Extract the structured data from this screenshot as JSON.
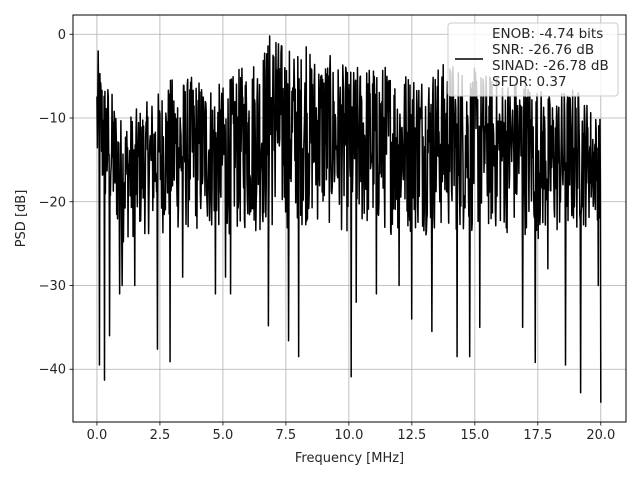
{
  "chart_data": {
    "type": "line",
    "title": "",
    "xlabel": "Frequency [MHz]",
    "ylabel": "PSD [dB]",
    "xlim": [
      -0.95,
      21.0
    ],
    "ylim": [
      -46.3,
      2.3
    ],
    "xticks": [
      0.0,
      2.5,
      5.0,
      7.5,
      10.0,
      12.5,
      15.0,
      17.5,
      20.0
    ],
    "xtick_labels": [
      "0.0",
      "2.5",
      "5.0",
      "7.5",
      "10.0",
      "12.5",
      "15.0",
      "17.5",
      "20.0"
    ],
    "yticks": [
      0,
      -10,
      -20,
      -30,
      -40
    ],
    "ytick_labels": [
      "0",
      "−10",
      "−20",
      "−30",
      "−40"
    ],
    "grid": true,
    "legend": {
      "placement": "top-right",
      "entries": [
        "ENOB: -4.74 bits",
        "SNR: -26.76 dB",
        "SINAD: -26.78 dB",
        "SFDR: 0.37"
      ]
    },
    "series": [
      {
        "color": "#000000",
        "x_range": [
          0.0,
          20.0
        ],
        "num_points": 1200,
        "envelope_upper": [
          [
            0.0,
            -2.0
          ],
          [
            1.0,
            -10.0
          ],
          [
            2.0,
            -8.0
          ],
          [
            3.0,
            -5.0
          ],
          [
            4.0,
            -5.0
          ],
          [
            5.0,
            -6.0
          ],
          [
            6.0,
            -3.0
          ],
          [
            7.0,
            0.0
          ],
          [
            8.0,
            -2.0
          ],
          [
            9.0,
            -2.0
          ],
          [
            10.0,
            -4.0
          ],
          [
            11.0,
            -3.0
          ],
          [
            12.0,
            -4.0
          ],
          [
            13.0,
            -4.0
          ],
          [
            14.0,
            -3.0
          ],
          [
            15.0,
            -4.0
          ],
          [
            16.0,
            -5.0
          ],
          [
            17.0,
            -5.0
          ],
          [
            18.0,
            -7.0
          ],
          [
            19.0,
            -6.0
          ],
          [
            20.0,
            -10.0
          ]
        ],
        "envelope_lower": [
          [
            0.0,
            -20.0
          ],
          [
            1.0,
            -25.0
          ],
          [
            2.0,
            -24.0
          ],
          [
            3.0,
            -24.0
          ],
          [
            4.0,
            -24.0
          ],
          [
            5.0,
            -24.0
          ],
          [
            6.0,
            -24.0
          ],
          [
            7.0,
            -24.0
          ],
          [
            8.0,
            -23.0
          ],
          [
            9.0,
            -23.0
          ],
          [
            10.0,
            -24.0
          ],
          [
            11.0,
            -24.0
          ],
          [
            12.0,
            -24.0
          ],
          [
            13.0,
            -24.0
          ],
          [
            14.0,
            -24.0
          ],
          [
            15.0,
            -24.0
          ],
          [
            16.0,
            -24.0
          ],
          [
            17.0,
            -24.0
          ],
          [
            18.0,
            -25.0
          ],
          [
            19.0,
            -24.0
          ],
          [
            20.0,
            -22.0
          ]
        ],
        "deep_nulls": [
          [
            0.1,
            -39.5
          ],
          [
            0.3,
            -41.3
          ],
          [
            0.5,
            -36.0
          ],
          [
            0.9,
            -31.0
          ],
          [
            1.0,
            -30.0
          ],
          [
            1.5,
            -30.0
          ],
          [
            2.4,
            -37.6
          ],
          [
            2.9,
            -39.1
          ],
          [
            3.4,
            -29.0
          ],
          [
            4.7,
            -31.0
          ],
          [
            5.1,
            -29.0
          ],
          [
            5.3,
            -31.0
          ],
          [
            6.8,
            -34.8
          ],
          [
            7.6,
            -36.6
          ],
          [
            8.0,
            -38.5
          ],
          [
            10.1,
            -40.9
          ],
          [
            10.3,
            -32.0
          ],
          [
            11.1,
            -31.0
          ],
          [
            12.0,
            -30.0
          ],
          [
            12.5,
            -34.0
          ],
          [
            13.3,
            -35.5
          ],
          [
            14.3,
            -38.5
          ],
          [
            14.8,
            -38.5
          ],
          [
            15.2,
            -35.0
          ],
          [
            16.9,
            -35.0
          ],
          [
            17.4,
            -39.2
          ],
          [
            17.9,
            -28.0
          ],
          [
            18.6,
            -39.5
          ],
          [
            19.2,
            -42.8
          ],
          [
            19.9,
            -30.0
          ],
          [
            20.0,
            -44.0
          ]
        ],
        "peaks": [
          [
            0.05,
            -2.0
          ],
          [
            6.85,
            -0.2
          ],
          [
            7.1,
            -1.0
          ],
          [
            8.3,
            -1.5
          ]
        ]
      }
    ]
  }
}
